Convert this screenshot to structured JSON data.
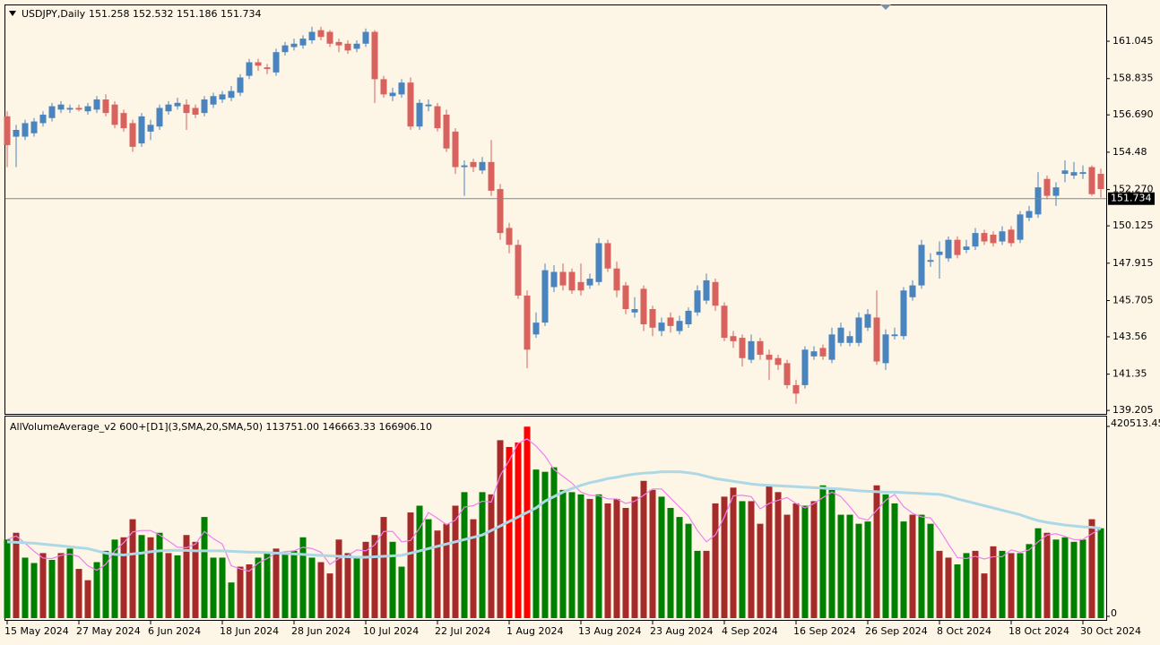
{
  "chart_data": [
    {
      "type": "candlestick",
      "title": "USDJPY,Daily",
      "subtitle": "151.258 152.532 151.186 151.734",
      "open": [
        156.6,
        155.4,
        155.4,
        155.6,
        156.2,
        156.5,
        157.0,
        157.0,
        157.1,
        156.9,
        157.0,
        157.6,
        157.3,
        156.8,
        156.2,
        155.0,
        155.7,
        156.0,
        156.9,
        157.2,
        157.3,
        157.1,
        156.8,
        157.3,
        157.6,
        157.7,
        158.0,
        159.0,
        159.8,
        159.5,
        159.2,
        160.4,
        160.7,
        160.8,
        161.1,
        161.7,
        161.6,
        161.0,
        160.9,
        160.6,
        160.9,
        161.6,
        158.8,
        157.8,
        157.9,
        158.6,
        156.0,
        157.2,
        157.2,
        156.7,
        155.7,
        153.6,
        153.9,
        153.4,
        153.9,
        152.3,
        150.0,
        149.0,
        146.0,
        143.7,
        144.4,
        146.5,
        147.4,
        147.4,
        146.8,
        146.6,
        146.8,
        149.1,
        147.6,
        146.6,
        145.0,
        146.4,
        145.2,
        143.9,
        144.7,
        143.9,
        144.3,
        145.0,
        145.7,
        146.8,
        145.4,
        143.6,
        143.5,
        142.2,
        143.3,
        142.5,
        142.3,
        142.0,
        140.7,
        140.7,
        142.4,
        142.9,
        142.2,
        143.2,
        143.2,
        143.2,
        144.1,
        144.7,
        142.0,
        143.6,
        143.6,
        145.9,
        146.6,
        148.0,
        148.4,
        148.2,
        149.3,
        148.7,
        148.9,
        149.7,
        149.6,
        149.2,
        149.9,
        149.3,
        150.6,
        150.8,
        152.9,
        151.9,
        153.2,
        153.1,
        153.2,
        153.6,
        153.2
      ],
      "high": [
        156.9,
        156.1,
        156.4,
        156.5,
        156.9,
        157.4,
        157.5,
        157.3,
        157.3,
        157.4,
        157.8,
        157.9,
        157.5,
        157.0,
        156.4,
        156.8,
        156.4,
        157.3,
        157.5,
        157.7,
        157.6,
        157.3,
        157.8,
        158.0,
        158.1,
        158.4,
        159.1,
        160.0,
        160.0,
        159.7,
        160.6,
        161.0,
        161.2,
        161.4,
        161.9,
        161.9,
        161.7,
        161.2,
        161.1,
        161.1,
        161.8,
        161.7,
        159.0,
        158.3,
        158.8,
        158.9,
        157.6,
        157.6,
        157.4,
        157.0,
        155.9,
        154.0,
        154.1,
        154.2,
        155.2,
        152.6,
        150.3,
        149.3,
        146.3,
        145.0,
        147.9,
        147.8,
        147.9,
        147.6,
        147.9,
        147.3,
        149.4,
        149.3,
        148.0,
        146.8,
        145.9,
        146.6,
        145.4,
        144.7,
        145.0,
        144.8,
        145.3,
        146.6,
        147.3,
        147.0,
        145.6,
        143.9,
        143.7,
        143.7,
        143.5,
        142.8,
        142.5,
        142.2,
        141.0,
        143.0,
        143.0,
        143.1,
        144.1,
        144.4,
        143.9,
        145.0,
        145.2,
        146.3,
        144.0,
        144.1,
        146.5,
        146.9,
        149.3,
        148.5,
        149.2,
        149.5,
        149.5,
        149.3,
        150.0,
        149.9,
        149.8,
        150.1,
        150.1,
        151.0,
        151.3,
        153.3,
        153.1,
        152.7,
        154.0,
        153.9,
        153.7,
        153.7,
        153.5
      ],
      "low": [
        153.6,
        153.6,
        155.2,
        155.4,
        156.0,
        156.3,
        156.8,
        156.8,
        156.9,
        156.7,
        156.8,
        156.6,
        155.9,
        155.7,
        154.5,
        154.8,
        155.2,
        155.8,
        156.7,
        157.0,
        155.8,
        156.5,
        156.6,
        157.1,
        157.4,
        157.5,
        157.8,
        158.8,
        159.3,
        159.1,
        159.0,
        160.2,
        160.5,
        160.6,
        160.9,
        161.1,
        160.7,
        160.4,
        160.3,
        160.4,
        160.7,
        157.4,
        157.7,
        157.5,
        157.7,
        155.8,
        155.8,
        156.9,
        155.7,
        154.5,
        153.2,
        151.9,
        153.3,
        153.2,
        151.9,
        149.3,
        148.5,
        145.8,
        141.7,
        143.5,
        144.2,
        146.2,
        146.3,
        146.1,
        146.0,
        146.4,
        146.6,
        147.4,
        145.9,
        144.9,
        144.7,
        143.9,
        143.6,
        143.6,
        143.8,
        143.7,
        144.1,
        144.8,
        145.5,
        145.1,
        143.3,
        142.9,
        141.8,
        142.0,
        142.2,
        141.0,
        141.6,
        140.5,
        139.6,
        140.5,
        142.2,
        142.2,
        142.0,
        143.0,
        143.0,
        143.0,
        143.9,
        141.9,
        141.6,
        143.4,
        143.4,
        145.7,
        146.4,
        147.7,
        147.0,
        148.0,
        148.2,
        148.5,
        148.7,
        149.0,
        148.9,
        149.0,
        148.9,
        149.1,
        150.4,
        150.6,
        151.7,
        151.3,
        152.7,
        152.9,
        152.9,
        151.9,
        151.8
      ],
      "close": [
        154.9,
        155.8,
        156.2,
        156.3,
        156.7,
        157.2,
        157.3,
        157.1,
        157.0,
        157.2,
        157.6,
        156.8,
        156.1,
        155.9,
        154.8,
        156.6,
        156.1,
        157.1,
        157.3,
        157.4,
        156.8,
        156.7,
        157.6,
        157.8,
        157.9,
        158.1,
        158.9,
        159.8,
        159.6,
        159.4,
        160.4,
        160.8,
        160.9,
        161.2,
        161.6,
        161.3,
        160.9,
        160.8,
        160.5,
        160.9,
        161.6,
        158.8,
        157.9,
        158.0,
        158.6,
        156.0,
        157.4,
        157.3,
        155.9,
        154.7,
        153.6,
        153.7,
        153.6,
        153.9,
        152.2,
        149.7,
        149.0,
        146.0,
        142.8,
        144.4,
        147.5,
        147.4,
        146.6,
        146.3,
        146.3,
        147.0,
        149.1,
        147.6,
        146.3,
        145.2,
        145.2,
        144.3,
        144.1,
        144.4,
        144.2,
        144.5,
        145.1,
        146.3,
        146.9,
        145.4,
        143.5,
        143.3,
        142.3,
        143.3,
        142.5,
        142.2,
        141.9,
        140.7,
        140.2,
        142.8,
        142.7,
        142.4,
        143.7,
        144.1,
        143.6,
        144.7,
        144.9,
        142.1,
        143.7,
        143.7,
        146.3,
        146.6,
        149.0,
        148.1,
        148.6,
        149.3,
        148.4,
        148.9,
        149.7,
        149.2,
        149.1,
        149.8,
        149.1,
        150.8,
        151.0,
        152.4,
        151.9,
        152.4,
        153.4,
        153.3,
        153.3,
        152.0,
        152.3
      ],
      "up_color": "#4a84bf",
      "down_color": "#d8625d",
      "ylim": [
        139.0,
        163.22
      ],
      "yticks": [
        139.205,
        141.35,
        143.56,
        145.705,
        147.915,
        150.125,
        {
          "value": 152.27,
          "label": "152.270"
        },
        154.48,
        {
          "value": 156.69,
          "label": "156.690"
        },
        158.835,
        161.045
      ],
      "current_price": 151.734
    },
    {
      "type": "bar",
      "title": "AllVolumeAverage_v2 600+[D1](3,SMA,20,SMA,50) 113751.00 146663.33 166906.10",
      "categories": [
        "15 May 2024",
        null,
        null,
        null,
        null,
        null,
        null,
        null,
        "27 May 2024",
        null,
        null,
        null,
        null,
        null,
        null,
        null,
        "6 Jun 2024",
        null,
        null,
        null,
        null,
        null,
        null,
        null,
        "18 Jun 2024",
        null,
        null,
        null,
        null,
        null,
        null,
        null,
        "28 Jun 2024",
        null,
        null,
        null,
        null,
        null,
        null,
        null,
        "10 Jul 2024",
        null,
        null,
        null,
        null,
        null,
        null,
        null,
        "22 Jul 2024",
        null,
        null,
        null,
        null,
        null,
        null,
        null,
        "1 Aug 2024",
        null,
        null,
        null,
        null,
        null,
        null,
        null,
        "13 Aug 2024",
        null,
        null,
        null,
        null,
        null,
        null,
        null,
        "23 Aug 2024",
        null,
        null,
        null,
        null,
        null,
        null,
        null,
        "4 Sep 2024",
        null,
        null,
        null,
        null,
        null,
        null,
        null,
        "16 Sep 2024",
        null,
        null,
        null,
        null,
        null,
        null,
        null,
        "26 Sep 2024",
        null,
        null,
        null,
        null,
        null,
        null,
        null,
        "8 Oct 2024",
        null,
        null,
        null,
        null,
        null,
        null,
        null,
        "18 Oct 2024",
        null,
        null,
        null,
        null,
        null,
        null,
        null,
        "30 Oct 2024",
        null,
        null
      ],
      "values": [
        170000,
        185000,
        130000,
        118000,
        140000,
        125000,
        140000,
        150000,
        105000,
        80000,
        120000,
        145000,
        170000,
        175000,
        215000,
        180000,
        175000,
        185000,
        140000,
        135000,
        180000,
        165000,
        220000,
        130000,
        130000,
        75000,
        110000,
        115000,
        130000,
        140000,
        150000,
        140000,
        145000,
        175000,
        130000,
        120000,
        95000,
        170000,
        140000,
        130000,
        165000,
        180000,
        220000,
        165000,
        110000,
        230000,
        245000,
        215000,
        190000,
        205000,
        245000,
        275000,
        215000,
        275000,
        270000,
        390000,
        375000,
        385000,
        420000,
        325000,
        320000,
        330000,
        280000,
        275000,
        270000,
        260000,
        270000,
        250000,
        260000,
        240000,
        265000,
        300000,
        280000,
        265000,
        240000,
        220000,
        205000,
        145000,
        145000,
        250000,
        265000,
        285000,
        255000,
        255000,
        205000,
        290000,
        275000,
        225000,
        250000,
        245000,
        255000,
        290000,
        280000,
        225000,
        225000,
        205000,
        210000,
        290000,
        270000,
        250000,
        210000,
        225000,
        225000,
        205000,
        145000,
        130000,
        115000,
        140000,
        145000,
        95000,
        155000,
        145000,
        140000,
        140000,
        160000,
        195000,
        185000,
        170000,
        175000,
        165000,
        170000,
        215000,
        195000
      ],
      "colors": [
        "#008000",
        "#a52a2a",
        "#008000",
        "#008000",
        "#a52a2a",
        "#008000",
        "#a52a2a",
        "#008000",
        "#a52a2a",
        "#a52a2a",
        "#008000",
        "#008000",
        "#008000",
        "#a52a2a",
        "#a52a2a",
        "#008000",
        "#a52a2a",
        "#008000",
        "#a52a2a",
        "#008000",
        "#a52a2a",
        "#a52a2a",
        "#008000",
        "#008000",
        "#008000",
        "#008000",
        "#a52a2a",
        "#a52a2a",
        "#008000",
        "#008000",
        "#a52a2a",
        "#008000",
        "#008000",
        "#008000",
        "#008000",
        "#a52a2a",
        "#a52a2a",
        "#a52a2a",
        "#a52a2a",
        "#008000",
        "#a52a2a",
        "#a52a2a",
        "#a52a2a",
        "#008000",
        "#008000",
        "#a52a2a",
        "#008000",
        "#008000",
        "#a52a2a",
        "#a52a2a",
        "#a52a2a",
        "#008000",
        "#a52a2a",
        "#008000",
        "#a52a2a",
        "#a52a2a",
        "#ff0000",
        "#ff0000",
        "#ff0000",
        "#008000",
        "#008000",
        "#008000",
        "#008000",
        "#008000",
        "#008000",
        "#a52a2a",
        "#008000",
        "#a52a2a",
        "#a52a2a",
        "#a52a2a",
        "#a52a2a",
        "#a52a2a",
        "#a52a2a",
        "#008000",
        "#008000",
        "#008000",
        "#008000",
        "#008000",
        "#a52a2a",
        "#a52a2a",
        "#a52a2a",
        "#a52a2a",
        "#008000",
        "#a52a2a",
        "#a52a2a",
        "#a52a2a",
        "#a52a2a",
        "#a52a2a",
        "#a52a2a",
        "#008000",
        "#a52a2a",
        "#008000",
        "#008000",
        "#008000",
        "#008000",
        "#008000",
        "#008000",
        "#a52a2a",
        "#008000",
        "#008000",
        "#008000",
        "#a52a2a",
        "#008000",
        "#008000",
        "#a52a2a",
        "#a52a2a",
        "#008000",
        "#008000",
        "#a52a2a",
        "#a52a2a",
        "#a52a2a",
        "#008000",
        "#a52a2a",
        "#008000",
        "#008000",
        "#008000",
        "#a52a2a",
        "#008000",
        "#008000",
        "#008000",
        "#008000",
        "#a52a2a",
        "#008000"
      ],
      "lines": [
        {
          "color": "#ee82ee",
          "values": [
            170000,
            178000,
            162000,
            144000,
            129000,
            128000,
            135000,
            138000,
            132000,
            112000,
            102000,
            115000,
            145000,
            163000,
            187000,
            190000,
            190000,
            180000,
            167000,
            153000,
            152000,
            160000,
            188000,
            172000,
            160000,
            112000,
            105000,
            100000,
            118000,
            128000,
            140000,
            143000,
            145000,
            153000,
            150000,
            142000,
            115000,
            128000,
            135000,
            147000,
            145000,
            158000,
            188000,
            188000,
            165000,
            168000,
            195000,
            230000,
            217000,
            203000,
            213000,
            242000,
            245000,
            255000,
            253000,
            312000,
            345000,
            383000,
            393000,
            377000,
            355000,
            325000,
            310000,
            295000,
            275000,
            268000,
            267000,
            260000,
            260000,
            250000,
            255000,
            268000,
            282000,
            282000,
            262000,
            242000,
            222000,
            190000,
            165000,
            180000,
            220000,
            267000,
            268000,
            265000,
            238000,
            250000,
            257000,
            263000,
            250000,
            240000,
            250000,
            263000,
            275000,
            265000,
            243000,
            218000,
            213000,
            235000,
            257000,
            270000,
            243000,
            228000,
            220000,
            218000,
            192000,
            160000,
            130000,
            128000,
            133000,
            127000,
            132000,
            132000,
            147000,
            142000,
            147000,
            165000,
            180000,
            183000,
            177000,
            170000,
            170000,
            183000,
            193000
          ]
        },
        {
          "color": "#add8e6",
          "values": [
            165000,
            164000,
            163000,
            162000,
            160000,
            158000,
            156000,
            154000,
            152000,
            150000,
            145000,
            140000,
            137000,
            136000,
            138000,
            140000,
            143000,
            145000,
            146000,
            146000,
            146000,
            145000,
            145000,
            145000,
            145000,
            144000,
            143000,
            142000,
            142000,
            141000,
            140000,
            139000,
            138000,
            137000,
            136000,
            135000,
            134000,
            133000,
            132000,
            131000,
            131000,
            132000,
            133000,
            134000,
            135000,
            140000,
            145000,
            150000,
            155000,
            160000,
            165000,
            170000,
            175000,
            180000,
            190000,
            200000,
            210000,
            220000,
            230000,
            240000,
            255000,
            265000,
            275000,
            283000,
            290000,
            296000,
            300000,
            305000,
            308000,
            312000,
            315000,
            317000,
            318000,
            320000,
            320000,
            320000,
            318000,
            315000,
            310000,
            305000,
            302000,
            299000,
            296000,
            293000,
            291000,
            290000,
            289000,
            288000,
            287000,
            286000,
            285000,
            284000,
            283000,
            282000,
            280000,
            278000,
            277000,
            276000,
            275000,
            275000,
            274000,
            273000,
            272000,
            271000,
            270000,
            266000,
            260000,
            255000,
            250000,
            245000,
            240000,
            235000,
            230000,
            225000,
            218000,
            212000,
            208000,
            205000,
            202000,
            200000,
            198000,
            197000,
            195000
          ]
        }
      ],
      "ylim": [
        0,
        420513.45
      ],
      "yticks": [
        0,
        420513.45
      ]
    }
  ]
}
